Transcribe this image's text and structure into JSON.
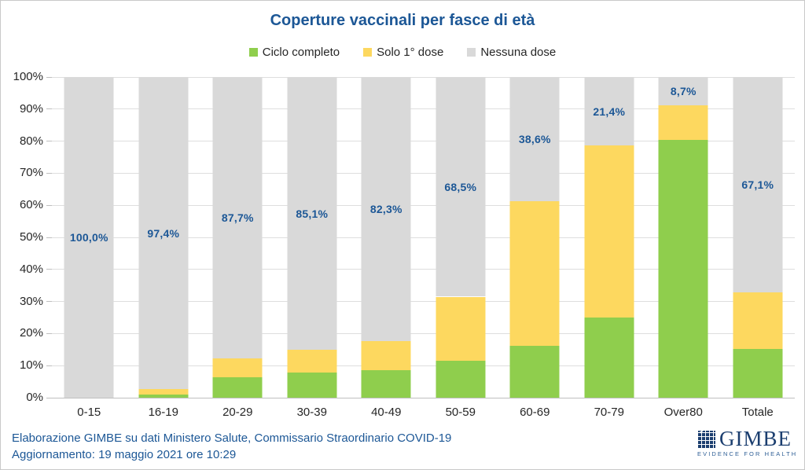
{
  "title": "Coperture vaccinali per fasce di età",
  "colors": {
    "title": "#1c5796",
    "data_label": "#1c5796",
    "footer_text": "#1c5796",
    "green": "#8fce4d",
    "yellow": "#fdd85f",
    "gray": "#d9d9d9"
  },
  "legend": [
    {
      "label": "Ciclo completo",
      "color": "#8fce4d"
    },
    {
      "label": "Solo 1° dose",
      "color": "#fdd85f"
    },
    {
      "label": "Nessuna dose",
      "color": "#d9d9d9"
    }
  ],
  "chart_data": {
    "type": "bar",
    "stacked": true,
    "title": "Coperture vaccinali per fasce di età",
    "xlabel": "",
    "ylabel": "",
    "ylim": [
      0,
      100
    ],
    "grid": true,
    "legend_position": "top",
    "categories": [
      "0-15",
      "16-19",
      "20-29",
      "30-39",
      "40-49",
      "50-59",
      "60-69",
      "70-79",
      "Over80",
      "Totale"
    ],
    "series": [
      {
        "name": "Ciclo completo",
        "color": "#8fce4d",
        "values": [
          0,
          0.9,
          6.3,
          7.9,
          8.7,
          11.6,
          16.3,
          25.0,
          80.3,
          15.1
        ]
      },
      {
        "name": "Solo 1° dose",
        "color": "#fdd85f",
        "values": [
          0,
          1.7,
          6.0,
          7.0,
          9.0,
          19.9,
          45.1,
          53.6,
          11.0,
          17.8
        ]
      },
      {
        "name": "Nessuna dose",
        "color": "#d9d9d9",
        "values": [
          100.0,
          97.4,
          87.7,
          85.1,
          82.3,
          68.5,
          38.6,
          21.4,
          8.7,
          67.1
        ]
      }
    ],
    "data_labels": {
      "series": "Nessuna dose",
      "values": [
        "100,0%",
        "97,4%",
        "87,7%",
        "85,1%",
        "82,3%",
        "68,5%",
        "38,6%",
        "21,4%",
        "8,7%",
        "67,1%"
      ]
    },
    "yticks": [
      "100%",
      "90%",
      "80%",
      "70%",
      "60%",
      "50%",
      "40%",
      "30%",
      "20%",
      "10%",
      "0%"
    ]
  },
  "footer": {
    "line1": "Elaborazione GIMBE su dati Ministero Salute, Commissario Straordinario COVID-19",
    "line2": "Aggiornamento: 19 maggio 2021 ore 10:29"
  },
  "logo": {
    "name": "GIMBE",
    "tagline": "EVIDENCE FOR HEALTH",
    "check_icon": "✓"
  }
}
